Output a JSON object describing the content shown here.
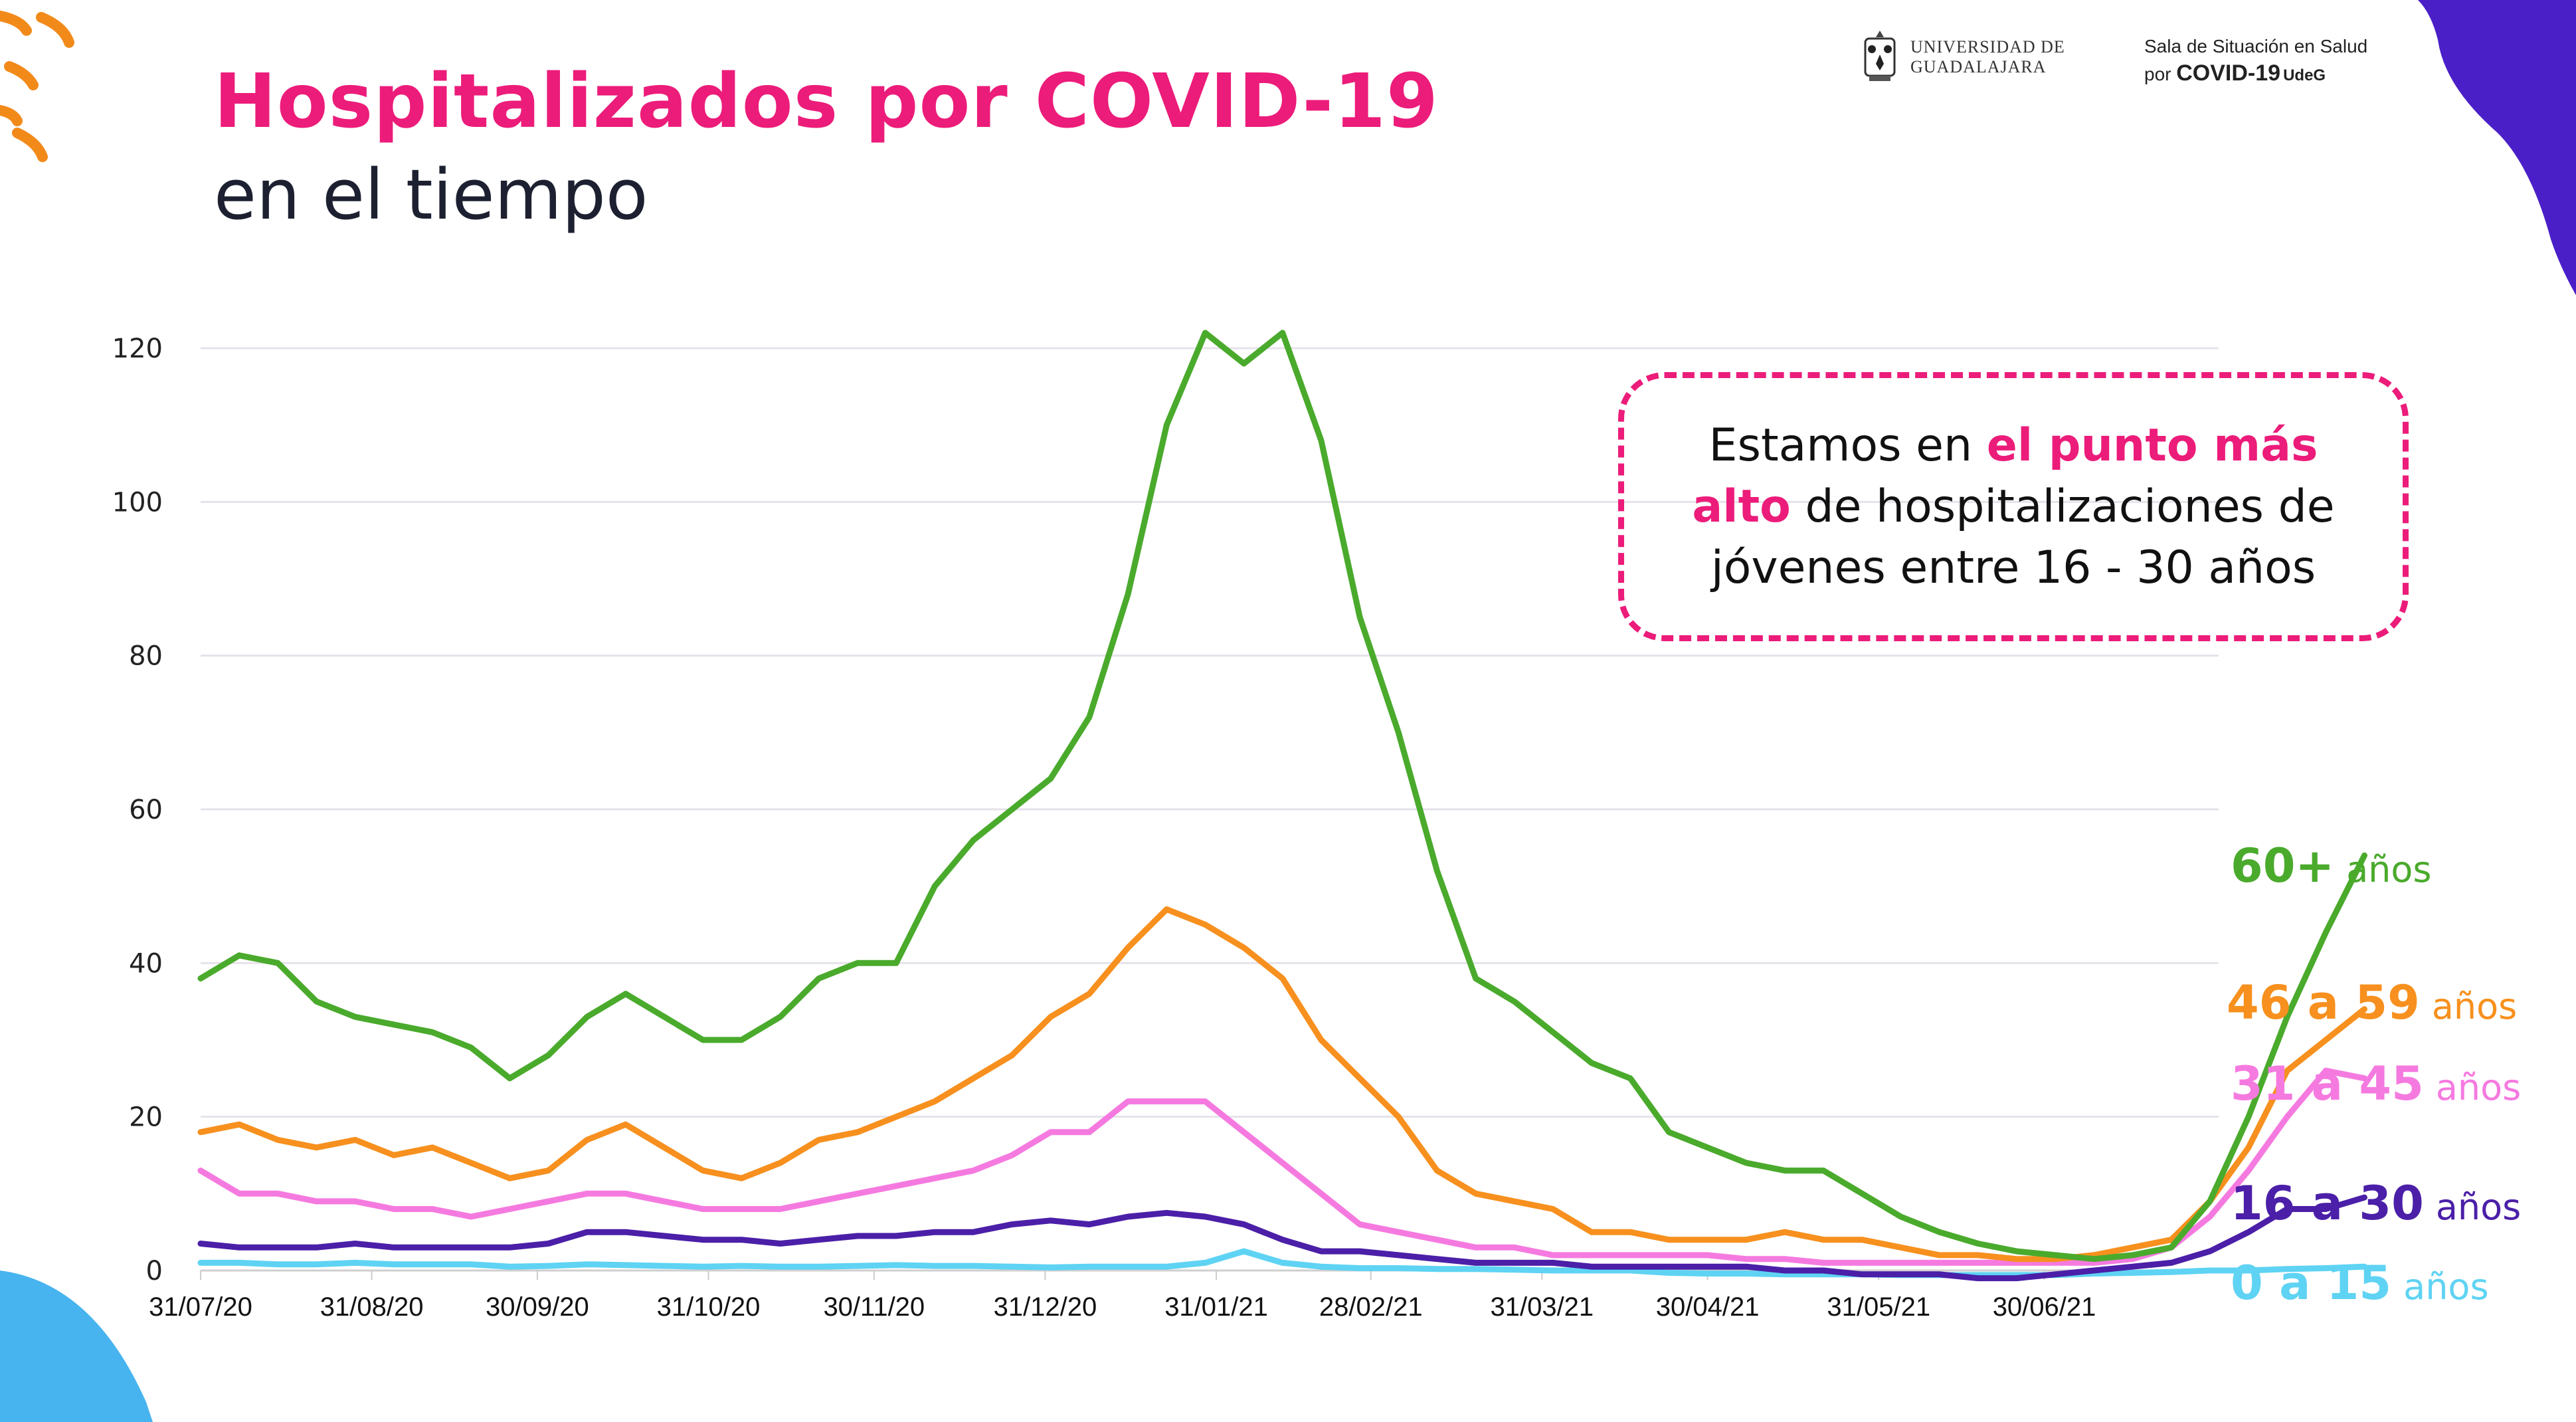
{
  "header": {
    "title": "Hospitalizados por COVID-19",
    "subtitle": "en el tiempo"
  },
  "logos": {
    "university_line1": "UNIVERSIDAD DE",
    "university_line2": "GUADALAJARA",
    "sala_line1": "Sala de Situación en Salud",
    "sala_line2_prefix": "por",
    "sala_line2_covid": "COVID-19",
    "sala_line2_suffix": "UdeG"
  },
  "callout": {
    "part1": "Estamos en ",
    "highlight1": "el punto más",
    "highlight2": "alto",
    "part2": " de hospitalizaciones de",
    "part3": "jóvenes entre 16 - 30 años"
  },
  "colors": {
    "accent": "#ec1c7a",
    "green": "#4aaa2c",
    "orange": "#f7901e",
    "pink": "#f57ae0",
    "purple": "#4b1fa8",
    "cyan": "#5fd3f3"
  },
  "chart_data": {
    "type": "line",
    "title": "Hospitalizados por COVID-19 en el tiempo",
    "xlabel": "",
    "ylabel": "",
    "ylim": [
      0,
      120
    ],
    "yticks": [
      0,
      20,
      40,
      60,
      80,
      100,
      120
    ],
    "grid": true,
    "legend_placement": "right (inline at line ends)",
    "x_tick_labels": [
      "31/07/20",
      "31/08/20",
      "30/09/20",
      "31/10/20",
      "30/11/20",
      "31/12/20",
      "31/01/21",
      "28/02/21",
      "31/03/21",
      "30/04/21",
      "31/05/21",
      "30/06/21"
    ],
    "x_tick_days": [
      0,
      31,
      61,
      92,
      122,
      153,
      184,
      212,
      243,
      273,
      304,
      334
    ],
    "x_start": "31/07/20",
    "x_step_days": 7,
    "series": [
      {
        "name": "60+ años",
        "label_big": "60+",
        "label_small": "años",
        "color": "#4aaa2c",
        "values": [
          38,
          41,
          40,
          35,
          33,
          32,
          31,
          29,
          25,
          28,
          33,
          36,
          33,
          30,
          30,
          33,
          38,
          40,
          40,
          50,
          56,
          60,
          64,
          72,
          88,
          110,
          122,
          118,
          122,
          108,
          85,
          70,
          52,
          38,
          35,
          31,
          27,
          25,
          18,
          16,
          14,
          13,
          13,
          10,
          7,
          5,
          3.5,
          2.5,
          2,
          1.5,
          2,
          3,
          9,
          20,
          33,
          44,
          54
        ]
      },
      {
        "name": "46 a 59 años",
        "label_big": "46 a 59",
        "label_small": "años",
        "color": "#f7901e",
        "values": [
          18,
          19,
          17,
          16,
          17,
          15,
          16,
          14,
          12,
          13,
          17,
          19,
          16,
          13,
          12,
          14,
          17,
          18,
          20,
          22,
          25,
          28,
          33,
          36,
          42,
          47,
          45,
          42,
          38,
          30,
          25,
          20,
          13,
          10,
          9,
          8,
          5,
          5,
          4,
          4,
          4,
          5,
          4,
          4,
          3,
          2,
          2,
          1.5,
          1.5,
          2,
          3,
          4,
          9,
          16,
          26,
          30,
          34
        ]
      },
      {
        "name": "31 a 45 años",
        "label_big": "31 a 45",
        "label_small": "años",
        "color": "#f57ae0",
        "values": [
          13,
          10,
          10,
          9,
          9,
          8,
          8,
          7,
          8,
          9,
          10,
          10,
          9,
          8,
          8,
          8,
          9,
          10,
          11,
          12,
          13,
          15,
          18,
          18,
          22,
          22,
          22,
          18,
          14,
          10,
          6,
          5,
          4,
          3,
          3,
          2,
          2,
          2,
          2,
          2,
          1.5,
          1.5,
          1,
          1,
          1,
          1,
          1,
          1,
          1,
          1,
          1.5,
          3,
          7,
          13,
          20,
          26,
          25
        ]
      },
      {
        "name": "16 a 30 años",
        "label_big": "16 a 30",
        "label_small": "años",
        "color": "#4b1fa8",
        "values": [
          3.5,
          3,
          3,
          3,
          3.5,
          3,
          3,
          3,
          3,
          3.5,
          5,
          5,
          4.5,
          4,
          4,
          3.5,
          4,
          4.5,
          4.5,
          5,
          5,
          6,
          6.5,
          6,
          7,
          7.5,
          7,
          6,
          4,
          2.5,
          2.5,
          2,
          1.5,
          1,
          1,
          1,
          0.5,
          0.5,
          0.5,
          0.5,
          0.5,
          0,
          0,
          -0.5,
          -0.5,
          -0.5,
          -1,
          -1,
          -0.5,
          0,
          0.5,
          1,
          2.5,
          5,
          8,
          8,
          9.5
        ]
      },
      {
        "name": "0 a 15 años",
        "label_big": "0 a 15",
        "label_small": "años",
        "color": "#5fd3f3",
        "values": [
          1,
          1,
          0.8,
          0.8,
          1,
          0.8,
          0.8,
          0.8,
          0.5,
          0.6,
          0.8,
          0.7,
          0.6,
          0.5,
          0.6,
          0.5,
          0.5,
          0.6,
          0.7,
          0.6,
          0.6,
          0.5,
          0.4,
          0.5,
          0.5,
          0.5,
          1,
          2.5,
          1,
          0.5,
          0.3,
          0.3,
          0.2,
          0.2,
          0.1,
          0,
          0,
          0,
          -0.3,
          -0.4,
          -0.4,
          -0.5,
          -0.5,
          -0.5,
          -0.6,
          -0.6,
          -0.6,
          -0.6,
          -0.6,
          -0.4,
          -0.3,
          -0.2,
          0,
          0,
          0.2,
          0.3,
          0.5
        ]
      }
    ]
  }
}
